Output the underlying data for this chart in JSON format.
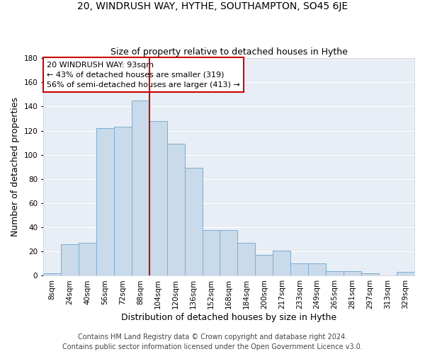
{
  "title": "20, WINDRUSH WAY, HYTHE, SOUTHAMPTON, SO45 6JE",
  "subtitle": "Size of property relative to detached houses in Hythe",
  "xlabel": "Distribution of detached houses by size in Hythe",
  "ylabel": "Number of detached properties",
  "bar_labels": [
    "8sqm",
    "24sqm",
    "40sqm",
    "56sqm",
    "72sqm",
    "88sqm",
    "104sqm",
    "120sqm",
    "136sqm",
    "152sqm",
    "168sqm",
    "184sqm",
    "200sqm",
    "217sqm",
    "233sqm",
    "249sqm",
    "265sqm",
    "281sqm",
    "297sqm",
    "313sqm",
    "329sqm"
  ],
  "bar_values": [
    2,
    26,
    27,
    122,
    123,
    145,
    128,
    109,
    89,
    38,
    38,
    27,
    17,
    21,
    10,
    10,
    4,
    4,
    2,
    0,
    3
  ],
  "bar_color": "#c9daea",
  "bar_edge_color": "#7aadd4",
  "vline_x": 5.5,
  "vline_color": "#cc0000",
  "annotation_text": "20 WINDRUSH WAY: 93sqm\n← 43% of detached houses are smaller (319)\n56% of semi-detached houses are larger (413) →",
  "annotation_box_color": "#ffffff",
  "annotation_box_edge_color": "#cc0000",
  "ylim": [
    0,
    180
  ],
  "yticks": [
    0,
    20,
    40,
    60,
    80,
    100,
    120,
    140,
    160,
    180
  ],
  "footer1": "Contains HM Land Registry data © Crown copyright and database right 2024.",
  "footer2": "Contains public sector information licensed under the Open Government Licence v3.0.",
  "background_color": "#ffffff",
  "plot_bg_color": "#e8eef5",
  "grid_color": "#ffffff",
  "title_fontsize": 10,
  "subtitle_fontsize": 9,
  "axis_label_fontsize": 9,
  "tick_fontsize": 7.5,
  "footer_fontsize": 7,
  "annotation_fontsize": 8
}
